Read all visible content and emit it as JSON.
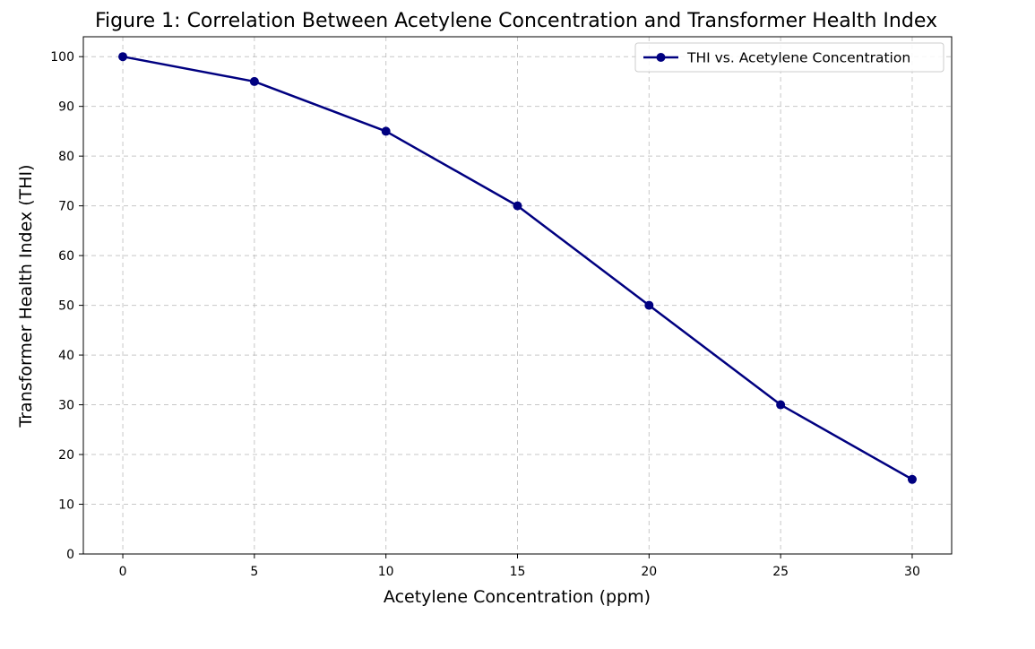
{
  "chart_data": {
    "type": "line",
    "title": "Figure 1: Correlation Between Acetylene Concentration and Transformer Health Index",
    "xlabel": "Acetylene Concentration (ppm)",
    "ylabel": "Transformer Health Index (THI)",
    "xlim": [
      -1.5,
      31.5
    ],
    "ylim": [
      0,
      104
    ],
    "xticks": [
      0,
      5,
      10,
      15,
      20,
      25,
      30
    ],
    "yticks": [
      0,
      10,
      20,
      30,
      40,
      50,
      60,
      70,
      80,
      90,
      100
    ],
    "grid": true,
    "legend_position": "upper right",
    "series": [
      {
        "name": "THI vs. Acetylene Concentration",
        "color": "#000080",
        "marker": "circle",
        "x": [
          0,
          5,
          10,
          15,
          20,
          25,
          30
        ],
        "y": [
          100,
          95,
          85,
          70,
          50,
          30,
          15
        ]
      }
    ]
  }
}
